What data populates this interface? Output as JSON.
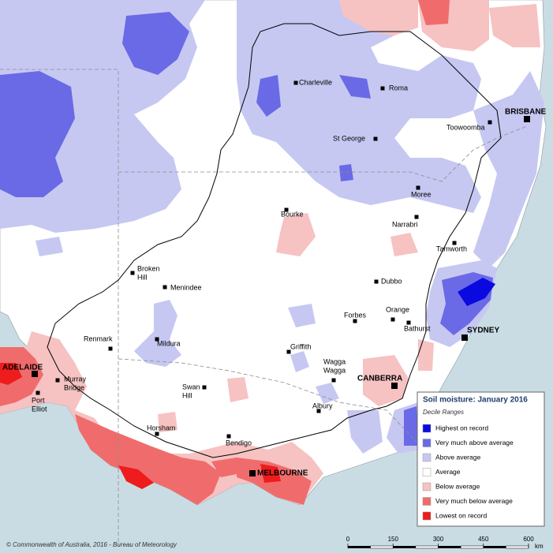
{
  "map": {
    "towns": [
      {
        "label": [
          "Charleville"
        ]
      },
      {
        "label": [
          "Roma"
        ]
      },
      {
        "label": [
          "BRISBANE"
        ]
      },
      {
        "label": [
          "Toowoomba"
        ]
      },
      {
        "label": [
          "St George"
        ]
      },
      {
        "label": [
          "Moree"
        ]
      },
      {
        "label": [
          "Bourke"
        ]
      },
      {
        "label": [
          "Narrabri"
        ]
      },
      {
        "label": [
          "Tamworth"
        ]
      },
      {
        "label": [
          "Broken",
          "Hill"
        ]
      },
      {
        "label": [
          "Menindee"
        ]
      },
      {
        "label": [
          "Dubbo"
        ]
      },
      {
        "label": [
          "Orange"
        ]
      },
      {
        "label": [
          "Forbes"
        ]
      },
      {
        "label": [
          "Bathurst"
        ]
      },
      {
        "label": [
          "SYDNEY"
        ]
      },
      {
        "label": [
          "Renmark"
        ]
      },
      {
        "label": [
          "Mildura"
        ]
      },
      {
        "label": [
          "Griffith"
        ]
      },
      {
        "label": [
          "Wagga",
          "Wagga"
        ]
      },
      {
        "label": [
          "ADELAIDE"
        ]
      },
      {
        "label": [
          "Murray",
          "Bridge"
        ]
      },
      {
        "label": [
          "Port",
          "Elliot"
        ]
      },
      {
        "label": [
          "CANBERRA"
        ]
      },
      {
        "label": [
          "Swan",
          "Hill"
        ]
      },
      {
        "label": [
          "Albury"
        ]
      },
      {
        "label": [
          "Horsham"
        ]
      },
      {
        "label": [
          "Bendigo"
        ]
      },
      {
        "label": [
          "MELBOURNE"
        ]
      }
    ],
    "legend": {
      "title": "Soil moisture: January 2016",
      "subtitle": "Decile Ranges",
      "items": [
        {
          "label": "Highest on record",
          "color": "#0a0ae0"
        },
        {
          "label": "Very much above average",
          "color": "#6a6ae6"
        },
        {
          "label": "Above average",
          "color": "#c6c8f2"
        },
        {
          "label": "Average",
          "color": "#ffffff"
        },
        {
          "label": "Below average",
          "color": "#f6c2c2"
        },
        {
          "label": "Very much below average",
          "color": "#f06c6c"
        },
        {
          "label": "Lowest on record",
          "color": "#ee1c1c"
        }
      ]
    },
    "scale": {
      "ticks": [
        0,
        150,
        300,
        450,
        600
      ],
      "unit": "km"
    },
    "credit": "© Commonwealth of Australia, 2016 - Bureau of Meteorology"
  }
}
